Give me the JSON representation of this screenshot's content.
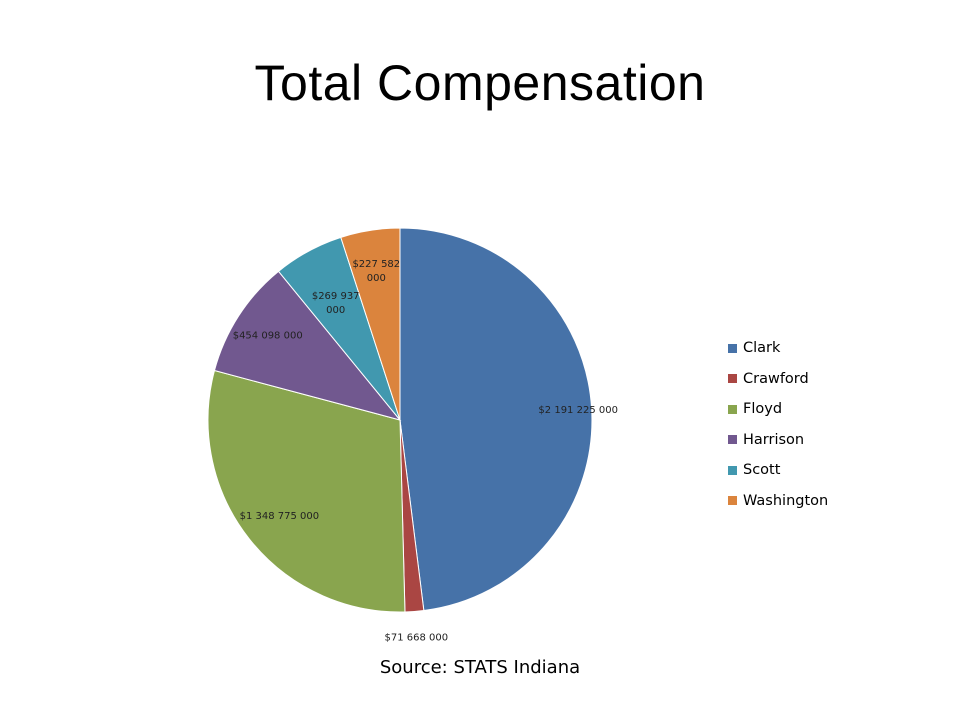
{
  "chart_data": {
    "type": "pie",
    "title": "Total Compensation",
    "source": "Source:  STATS Indiana",
    "categories": [
      "Clark",
      "Crawford",
      "Floyd",
      "Harrison",
      "Scott",
      "Washington"
    ],
    "values": [
      2191225000,
      71668000,
      1348775000,
      454098000,
      269937000,
      227582000
    ],
    "data_labels": [
      "$2 191 225 000",
      "$71 668 000",
      "$1 348 775 000",
      "$454 098 000",
      "$269 937 000",
      "$227 582 000"
    ],
    "colors": [
      "#4672A8",
      "#AA4643",
      "#89A54E",
      "#71588F",
      "#4198AF",
      "#DB843D"
    ],
    "legend_position": "right"
  }
}
